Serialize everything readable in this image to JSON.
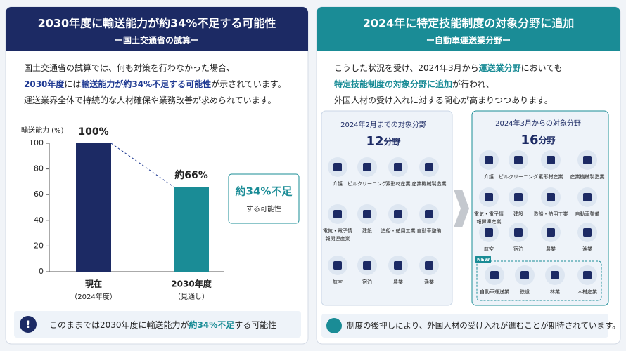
{
  "left": {
    "title": "2030年度に輸送能力が約34%不足する可能性",
    "subtitle": "ー国土交通省の試算ー",
    "body": [
      [
        {
          "text": "国土交通省の試算では、何も対策を行わなかった場合、",
          "em": false
        }
      ],
      [
        {
          "text": "2030年度",
          "em": true
        },
        {
          "text": "には",
          "em": false
        },
        {
          "text": "輸送能力が約34%不足する可能性",
          "em": true
        },
        {
          "text": "が示されています。",
          "em": false
        }
      ],
      [
        {
          "text": "運送業界全体で持続的な人材確保や業務改善が求められています。",
          "em": false
        }
      ]
    ],
    "callout": {
      "main": "約34%不足",
      "sub": "する可能性"
    },
    "footer": [
      {
        "text": "このままでは2030年度に輸送能力が",
        "em": false
      },
      {
        "text": "約34%不足",
        "em": true
      },
      {
        "text": "する可能性",
        "em": false
      }
    ]
  },
  "chart_data": {
    "type": "bar",
    "y_label": "輸送能力 (%)",
    "categories": [
      "現在",
      "2030年度"
    ],
    "category_notes": [
      "（2024年度）",
      "（見通し）"
    ],
    "values": [
      100,
      66
    ],
    "value_labels": [
      "100%",
      "約66%"
    ],
    "colors": [
      "#1c2a64",
      "#1a8c96"
    ],
    "ylim": [
      0,
      100
    ],
    "yticks": [
      0,
      20,
      40,
      60,
      80,
      100
    ]
  },
  "right": {
    "title": "2024年に特定技能制度の対象分野に追加",
    "subtitle": "ー自動車運送業分野ー",
    "body": [
      [
        {
          "text": "こうした状況を受け、2024年3月から",
          "em": false
        },
        {
          "text": "運送業分野",
          "em": true
        },
        {
          "text": "においても",
          "em": false
        }
      ],
      [
        {
          "text": "特定技能制度の対象分野に追加",
          "em": true
        },
        {
          "text": "が行われ、",
          "em": false
        }
      ],
      [
        {
          "text": "外国人材の受け入れに対する関心が高まりつつあります。",
          "em": false
        }
      ]
    ],
    "before": {
      "heading": "2024年2月までの対象分野",
      "count": "12",
      "unit": "分野",
      "items": [
        "介護",
        "ビルクリーニング",
        "素形材産業",
        "産業機械製造業",
        [
          "電気・電子情",
          "報関連産業"
        ],
        "建設",
        "造船・舶用工業",
        "自動車整備",
        "航空",
        "宿泊",
        "農業",
        "漁業"
      ]
    },
    "after": {
      "heading": "2024年3月からの対象分野",
      "count": "16",
      "unit": "分野",
      "items": [
        "介護",
        "ビルクリーニング",
        "素形材産業",
        "産業機械製造業",
        [
          "電気・電子情",
          "報関連産業"
        ],
        "建設",
        "造船・舶用工業",
        "自動車整備",
        "航空",
        "宿泊",
        "農業",
        "漁業"
      ],
      "new_badge": "NEW",
      "new_items": [
        "自動車運送業",
        "鉄道",
        "林業",
        "木材産業"
      ]
    },
    "footer": "制度の後押しにより、外国人材の受け入れが進むことが期待されています。"
  }
}
